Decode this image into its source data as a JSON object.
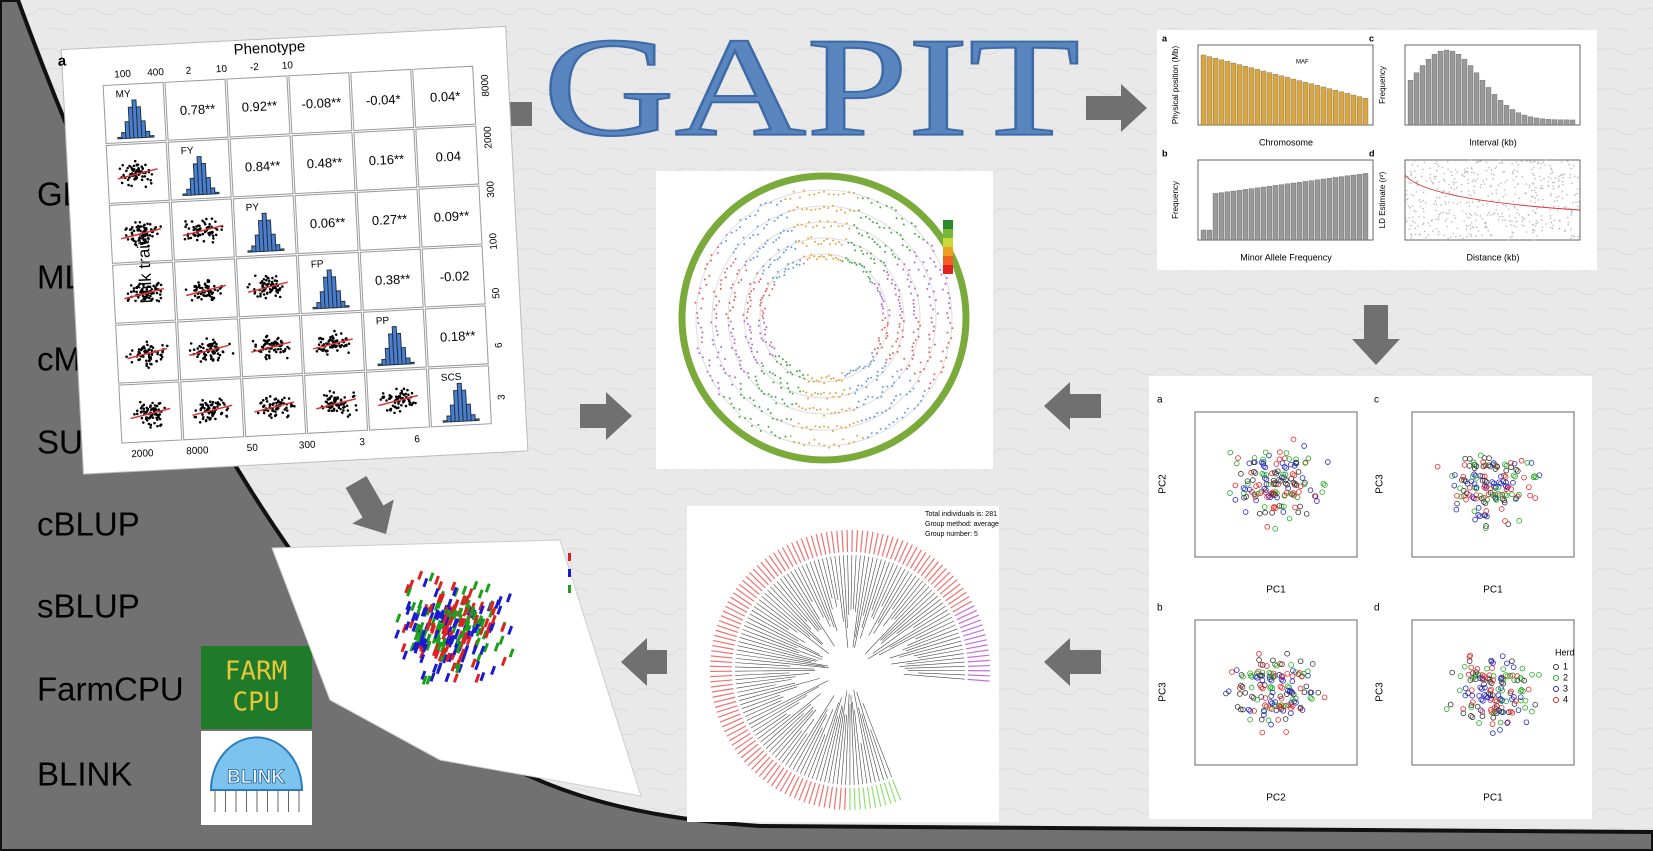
{
  "title": "GAPIT",
  "methods": [
    "GL",
    "MLN",
    "cMLM",
    "SUPER",
    "cBLUP",
    "sBLUP",
    "FarmCPU",
    "BLINK"
  ],
  "logos": {
    "farmcpu_top": "FARM",
    "farmcpu_bottom": "CPU",
    "blink": "BLINK"
  },
  "correlation": {
    "panel": "a",
    "top_label": "Phenotype",
    "side_label": "Milk traits",
    "traits": [
      "MY",
      "FY",
      "PY",
      "FP",
      "PP",
      "SCS"
    ],
    "cells": [
      [
        "0.78**",
        "0.92**",
        "-0.08**",
        "-0.04*",
        "0.04*"
      ],
      [
        "0.84**",
        "0.48**",
        "0.16**",
        "0.04"
      ],
      [
        "0.06**",
        "0.27**",
        "0.09**"
      ],
      [
        "0.38**",
        "-0.02"
      ],
      [
        "0.18**"
      ]
    ],
    "top_ticks": [
      "100",
      "400",
      "2",
      "10",
      "-2",
      "10"
    ],
    "bottom_ticks": [
      "2000",
      "8000",
      "50",
      "300",
      "3",
      "6"
    ],
    "right_ticks": [
      "8000",
      "2000",
      "300",
      "100",
      "50",
      "6",
      "3"
    ]
  },
  "histograms": {
    "panels": [
      "a",
      "b",
      "c",
      "d"
    ],
    "a": {
      "y": "Physical position (Mb)",
      "x": "Chromosome",
      "legend": "MAF"
    },
    "b": {
      "y": "Frequency",
      "x": "Minor Allele Frequency"
    },
    "c": {
      "y": "Frequency",
      "x": "Interval (kb)"
    },
    "d": {
      "y": "LD Estimate (r²)",
      "x": "Distance (kb)"
    }
  },
  "tree": {
    "info": [
      "Total individuals is: 281",
      "Group method: average",
      "Group number: 5"
    ]
  },
  "pca": {
    "panels": [
      "a",
      "c",
      "b",
      "d"
    ],
    "x_labels": [
      "PC1",
      "PC1",
      "PC2",
      "PC1"
    ],
    "y_labels": [
      "PC2",
      "PC3",
      "PC3",
      "PC3"
    ],
    "legend_title": "Herd",
    "legend": [
      "1",
      "2",
      "3",
      "4"
    ]
  }
}
